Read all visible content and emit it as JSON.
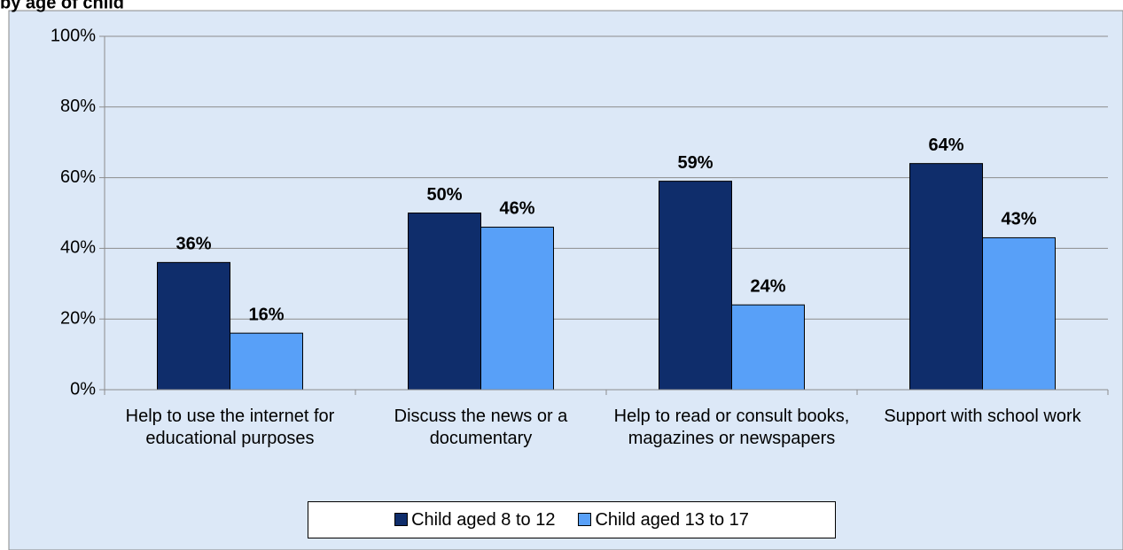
{
  "chart_data": {
    "type": "bar",
    "title": "by age of child",
    "categories": [
      "Help to use the internet for educational purposes",
      "Discuss the news or a documentary",
      "Help to read or consult books, magazines or newspapers",
      "Support with school work"
    ],
    "series": [
      {
        "name": "Child aged 8 to 12",
        "color": "#0f2d6b",
        "values": [
          36,
          50,
          59,
          64
        ],
        "value_labels": [
          "36%",
          "50%",
          "59%",
          "64%"
        ]
      },
      {
        "name": "Child aged 13 to 17",
        "color": "#58a0f8",
        "values": [
          16,
          46,
          24,
          43
        ],
        "value_labels": [
          "16%",
          "46%",
          "24%",
          "43%"
        ]
      }
    ],
    "ylim": [
      0,
      100
    ],
    "yticks": [
      {
        "value": 0,
        "label": "0%"
      },
      {
        "value": 20,
        "label": "20%"
      },
      {
        "value": 40,
        "label": "40%"
      },
      {
        "value": 60,
        "label": "60%"
      },
      {
        "value": 80,
        "label": "80%"
      },
      {
        "value": 100,
        "label": "100%"
      }
    ],
    "grid": true,
    "legend": "bottom"
  }
}
